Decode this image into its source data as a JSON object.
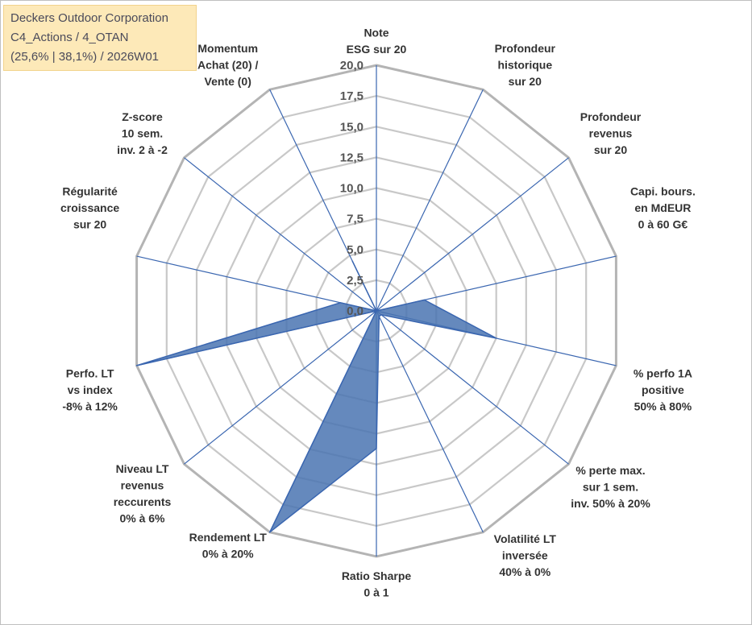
{
  "header": {
    "company": "Deckers Outdoor Corporation",
    "portfolio": "C4_Actions / 4_OTAN",
    "stats": "(25,6% | 38,1%) / 2026W01"
  },
  "colors": {
    "fill": "#4a74b2",
    "stroke": "#3a66b0",
    "grid": "#c0c0c0",
    "spoke": "#3a66b0",
    "info_bg": "#fde9b8"
  },
  "chart_data": {
    "type": "radar",
    "title": "",
    "rmin": 0,
    "rmax": 20,
    "ticks": [
      "0,0",
      "2,5",
      "5,0",
      "7,5",
      "10,0",
      "12,5",
      "15,0",
      "17,5",
      "20,0"
    ],
    "tick_values": [
      0,
      2.5,
      5,
      7.5,
      10,
      12.5,
      15,
      17.5,
      20
    ],
    "axes": [
      {
        "label": [
          "Note",
          "ESG sur 20"
        ],
        "value": 0
      },
      {
        "label": [
          "Profondeur",
          "historique",
          "sur 20"
        ],
        "value": 0
      },
      {
        "label": [
          "Profondeur",
          "revenus",
          "sur 20"
        ],
        "value": 0
      },
      {
        "label": [
          "Capi. bours.",
          "en MdEUR",
          "0 à 60 G€"
        ],
        "value": 4
      },
      {
        "label": [
          "% perfo 1A",
          "positive",
          "50% à 80%"
        ],
        "value": 10
      },
      {
        "label": [
          "% perte max.",
          "sur 1 sem.",
          "inv. 50% à 20%"
        ],
        "value": 0.5
      },
      {
        "label": [
          "Volatilité LT",
          "inversée",
          "40% à 0%"
        ],
        "value": 0.5
      },
      {
        "label": [
          "Ratio Sharpe",
          "0 à 1"
        ],
        "value": 11.2
      },
      {
        "label": [
          "Rendement LT",
          "0% à 20%"
        ],
        "value": 20
      },
      {
        "label": [
          "Niveau LT",
          "revenus",
          "reccurents",
          "0% à 6%"
        ],
        "value": 0
      },
      {
        "label": [
          "Perfo. LT",
          "vs index",
          "-8% à 12%"
        ],
        "value": 20
      },
      {
        "label": [
          "Régularité",
          "croissance",
          "sur 20"
        ],
        "value": 3
      },
      {
        "label": [
          "Z-score",
          "10 sem.",
          "inv. 2 à -2"
        ],
        "value": 0
      },
      {
        "label": [
          "Momentum",
          "Achat (20) /",
          "Vente (0)"
        ],
        "value": 4.5
      }
    ]
  }
}
